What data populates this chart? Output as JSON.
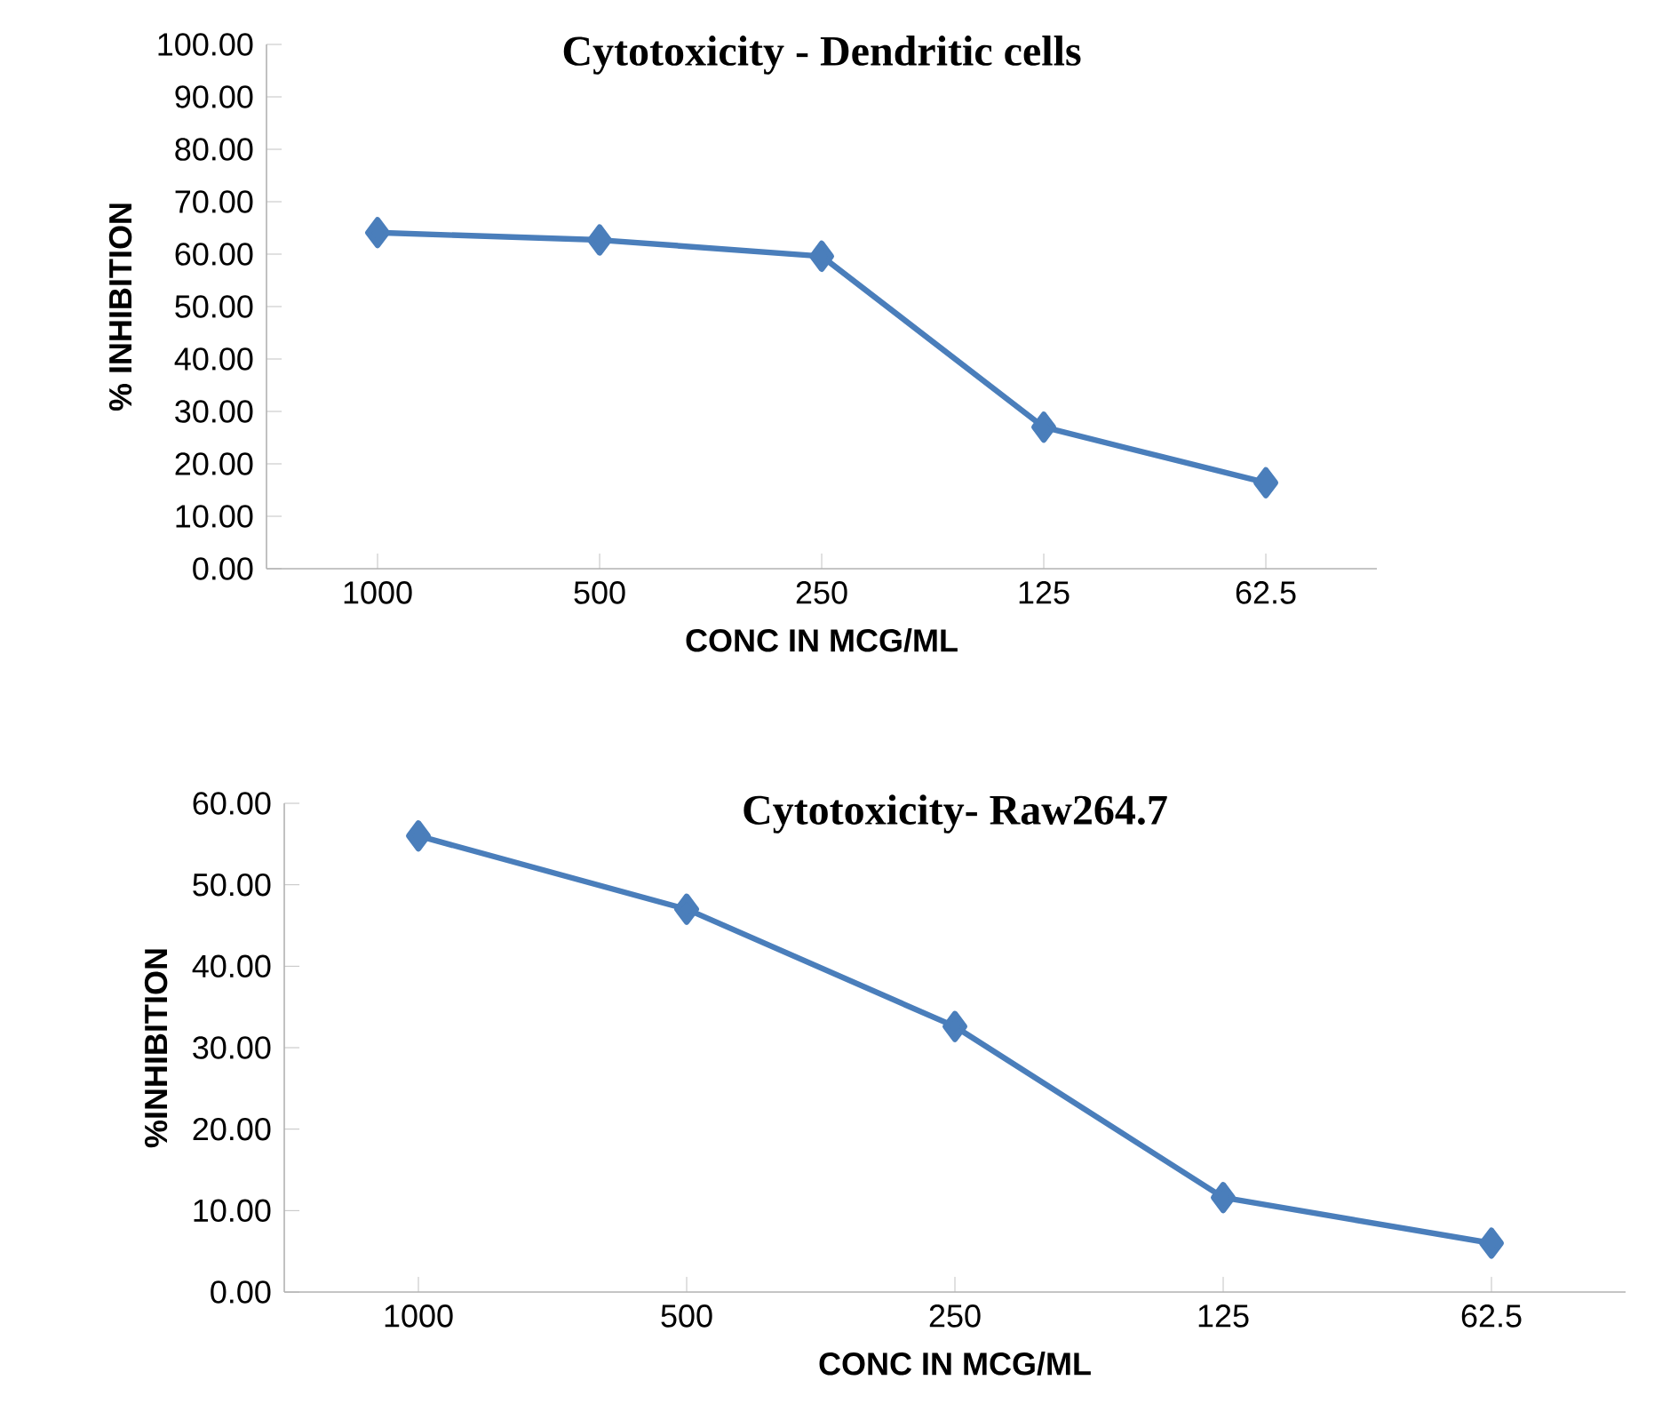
{
  "chart_data": [
    {
      "type": "line",
      "title": "Cytotoxicity  - Dendritic cells",
      "xlabel": "CONC IN MCG/ML",
      "ylabel": "% INHIBITION",
      "categories": [
        "1000",
        "500",
        "250",
        "125",
        "62.5"
      ],
      "series": [
        {
          "color": "#4a7ebb",
          "values": [
            64.1,
            62.7,
            59.6,
            27.0,
            16.4
          ]
        }
      ],
      "ylim": [
        0,
        100
      ],
      "yticks": [
        {
          "value": 0,
          "label": "0.00"
        },
        {
          "value": 10,
          "label": "10.00"
        },
        {
          "value": 20,
          "label": "20.00"
        },
        {
          "value": 30,
          "label": "30.00"
        },
        {
          "value": 40,
          "label": "40.00"
        },
        {
          "value": 50,
          "label": "50.00"
        },
        {
          "value": 60,
          "label": "60.00"
        },
        {
          "value": 70,
          "label": "70.00"
        },
        {
          "value": 80,
          "label": "80.00"
        },
        {
          "value": 90,
          "label": "90.00"
        },
        {
          "value": 100,
          "label": "100.00"
        }
      ],
      "grid": false,
      "marker": "diamond",
      "line_style": "solid"
    },
    {
      "type": "line",
      "title": "Cytotoxicity-  Raw264.7",
      "xlabel": "CONC IN MCG/ML",
      "ylabel": "%INHIBITION",
      "categories": [
        "1000",
        "500",
        "250",
        "125",
        "62.5"
      ],
      "series": [
        {
          "color": "#4a7ebb",
          "values": [
            56.0,
            47.0,
            32.6,
            11.6,
            6.0
          ]
        }
      ],
      "ylim": [
        0,
        60
      ],
      "yticks": [
        {
          "value": 0,
          "label": "0.00"
        },
        {
          "value": 10,
          "label": "10.00"
        },
        {
          "value": 20,
          "label": "20.00"
        },
        {
          "value": 30,
          "label": "30.00"
        },
        {
          "value": 40,
          "label": "40.00"
        },
        {
          "value": 50,
          "label": "50.00"
        },
        {
          "value": 60,
          "label": "60.00"
        }
      ],
      "grid": false,
      "marker": "diamond",
      "line_style": "solid"
    }
  ]
}
